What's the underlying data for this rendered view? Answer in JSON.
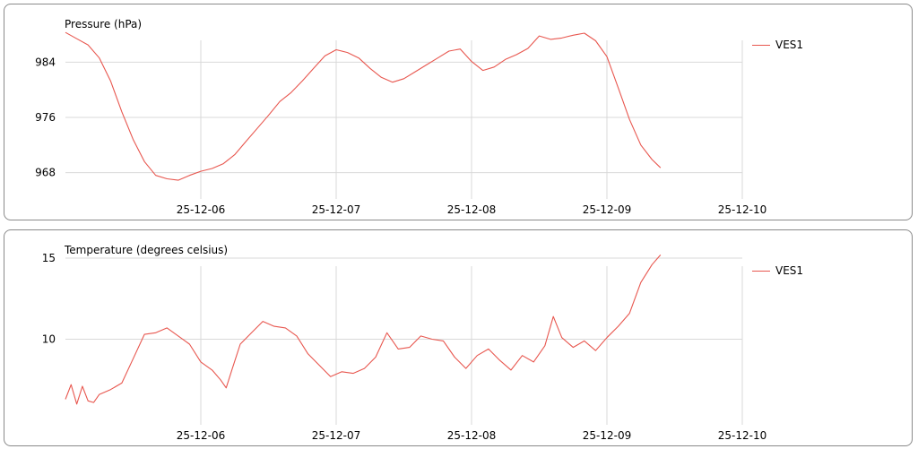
{
  "chart_data": [
    {
      "type": "line",
      "title": "Pressure (hPa)",
      "xlabel": "",
      "ylabel": "",
      "x_ticks": [
        "25-12-06",
        "25-12-07",
        "25-12-08",
        "25-12-09",
        "25-12-10"
      ],
      "y_ticks": [
        968,
        976,
        984
      ],
      "xlim": [
        "25-12-05 00:00",
        "25-12-10 00:00"
      ],
      "ylim": [
        966,
        989.5
      ],
      "grid": true,
      "legend": "right",
      "series": [
        {
          "name": "VES1",
          "color": "#e8574f",
          "points": [
            [
              "25-12-05 00:00",
              988.3
            ],
            [
              "25-12-05 02:00",
              987.4
            ],
            [
              "25-12-05 04:00",
              986.5
            ],
            [
              "25-12-05 06:00",
              984.6
            ],
            [
              "25-12-05 08:00",
              981.3
            ],
            [
              "25-12-05 10:00",
              976.8
            ],
            [
              "25-12-05 12:00",
              972.8
            ],
            [
              "25-12-05 14:00",
              969.6
            ],
            [
              "25-12-05 16:00",
              967.6
            ],
            [
              "25-12-05 18:00",
              967.1
            ],
            [
              "25-12-05 20:00",
              966.9
            ],
            [
              "25-12-05 22:00",
              967.6
            ],
            [
              "25-12-06 00:00",
              968.2
            ],
            [
              "25-12-06 02:00",
              968.6
            ],
            [
              "25-12-06 04:00",
              969.3
            ],
            [
              "25-12-06 06:00",
              970.6
            ],
            [
              "25-12-06 08:00",
              972.5
            ],
            [
              "25-12-06 10:00",
              974.4
            ],
            [
              "25-12-06 12:00",
              976.3
            ],
            [
              "25-12-06 14:00",
              978.3
            ],
            [
              "25-12-06 16:00",
              979.6
            ],
            [
              "25-12-06 18:00",
              981.3
            ],
            [
              "25-12-06 20:00",
              983.1
            ],
            [
              "25-12-06 22:00",
              984.9
            ],
            [
              "25-12-07 00:00",
              985.8
            ],
            [
              "25-12-07 02:00",
              985.4
            ],
            [
              "25-12-07 04:00",
              984.6
            ],
            [
              "25-12-07 06:00",
              983.1
            ],
            [
              "25-12-07 08:00",
              981.8
            ],
            [
              "25-12-07 10:00",
              981.1
            ],
            [
              "25-12-07 12:00",
              981.6
            ],
            [
              "25-12-07 14:00",
              982.6
            ],
            [
              "25-12-07 16:00",
              983.6
            ],
            [
              "25-12-07 18:00",
              984.6
            ],
            [
              "25-12-07 20:00",
              985.6
            ],
            [
              "25-12-07 22:00",
              985.9
            ],
            [
              "25-12-08 00:00",
              984.1
            ],
            [
              "25-12-08 02:00",
              982.8
            ],
            [
              "25-12-08 04:00",
              983.3
            ],
            [
              "25-12-08 06:00",
              984.4
            ],
            [
              "25-12-08 08:00",
              985.1
            ],
            [
              "25-12-08 10:00",
              986.0
            ],
            [
              "25-12-08 12:00",
              987.8
            ],
            [
              "25-12-08 14:00",
              987.3
            ],
            [
              "25-12-08 16:00",
              987.5
            ],
            [
              "25-12-08 18:00",
              987.9
            ],
            [
              "25-12-08 20:00",
              988.2
            ],
            [
              "25-12-08 22:00",
              987.1
            ],
            [
              "25-12-09 00:00",
              984.8
            ],
            [
              "25-12-09 02:00",
              980.3
            ],
            [
              "25-12-09 04:00",
              975.7
            ],
            [
              "25-12-09 06:00",
              972.0
            ],
            [
              "25-12-09 08:00",
              969.9
            ],
            [
              "25-12-09 09:30",
              968.7
            ]
          ]
        }
      ]
    },
    {
      "type": "line",
      "title": "Temperature (degrees celsius)",
      "xlabel": "",
      "ylabel": "",
      "x_ticks": [
        "25-12-06",
        "25-12-07",
        "25-12-08",
        "25-12-09",
        "25-12-10"
      ],
      "y_ticks": [
        10,
        15
      ],
      "xlim": [
        "25-12-05 00:00",
        "25-12-10 00:00"
      ],
      "ylim": [
        5.5,
        15.5
      ],
      "grid": true,
      "legend": "right",
      "series": [
        {
          "name": "VES1",
          "color": "#e8574f",
          "points": [
            [
              "25-12-05 00:00",
              6.3
            ],
            [
              "25-12-05 01:00",
              7.2
            ],
            [
              "25-12-05 02:00",
              6.0
            ],
            [
              "25-12-05 03:00",
              7.1
            ],
            [
              "25-12-05 04:00",
              6.2
            ],
            [
              "25-12-05 05:00",
              6.1
            ],
            [
              "25-12-05 06:00",
              6.6
            ],
            [
              "25-12-05 08:00",
              6.9
            ],
            [
              "25-12-05 10:00",
              7.3
            ],
            [
              "25-12-05 12:00",
              8.8
            ],
            [
              "25-12-05 14:00",
              10.3
            ],
            [
              "25-12-05 16:00",
              10.4
            ],
            [
              "25-12-05 18:00",
              10.7
            ],
            [
              "25-12-05 20:00",
              10.2
            ],
            [
              "25-12-05 22:00",
              9.7
            ],
            [
              "25-12-06 00:00",
              8.6
            ],
            [
              "25-12-06 02:00",
              8.1
            ],
            [
              "25-12-06 03:30",
              7.5
            ],
            [
              "25-12-06 04:30",
              7.0
            ],
            [
              "25-12-06 05:30",
              8.1
            ],
            [
              "25-12-06 07:00",
              9.7
            ],
            [
              "25-12-06 09:00",
              10.4
            ],
            [
              "25-12-06 11:00",
              11.1
            ],
            [
              "25-12-06 13:00",
              10.8
            ],
            [
              "25-12-06 15:00",
              10.7
            ],
            [
              "25-12-06 17:00",
              10.2
            ],
            [
              "25-12-06 19:00",
              9.1
            ],
            [
              "25-12-06 21:00",
              8.4
            ],
            [
              "25-12-06 23:00",
              7.7
            ],
            [
              "25-12-07 01:00",
              8.0
            ],
            [
              "25-12-07 03:00",
              7.9
            ],
            [
              "25-12-07 05:00",
              8.2
            ],
            [
              "25-12-07 07:00",
              8.9
            ],
            [
              "25-12-07 09:00",
              10.4
            ],
            [
              "25-12-07 11:00",
              9.4
            ],
            [
              "25-12-07 13:00",
              9.5
            ],
            [
              "25-12-07 15:00",
              10.2
            ],
            [
              "25-12-07 17:00",
              10.0
            ],
            [
              "25-12-07 19:00",
              9.9
            ],
            [
              "25-12-07 21:00",
              8.9
            ],
            [
              "25-12-07 23:00",
              8.2
            ],
            [
              "25-12-08 01:00",
              9.0
            ],
            [
              "25-12-08 03:00",
              9.4
            ],
            [
              "25-12-08 05:00",
              8.7
            ],
            [
              "25-12-08 07:00",
              8.1
            ],
            [
              "25-12-08 09:00",
              9.0
            ],
            [
              "25-12-08 11:00",
              8.6
            ],
            [
              "25-12-08 13:00",
              9.6
            ],
            [
              "25-12-08 14:30",
              11.4
            ],
            [
              "25-12-08 16:00",
              10.1
            ],
            [
              "25-12-08 18:00",
              9.5
            ],
            [
              "25-12-08 20:00",
              9.9
            ],
            [
              "25-12-08 22:00",
              9.3
            ],
            [
              "25-12-09 00:00",
              10.1
            ],
            [
              "25-12-09 02:00",
              10.8
            ],
            [
              "25-12-09 04:00",
              11.6
            ],
            [
              "25-12-09 06:00",
              13.5
            ],
            [
              "25-12-09 08:00",
              14.6
            ],
            [
              "25-12-09 09:30",
              15.2
            ]
          ]
        }
      ]
    }
  ]
}
